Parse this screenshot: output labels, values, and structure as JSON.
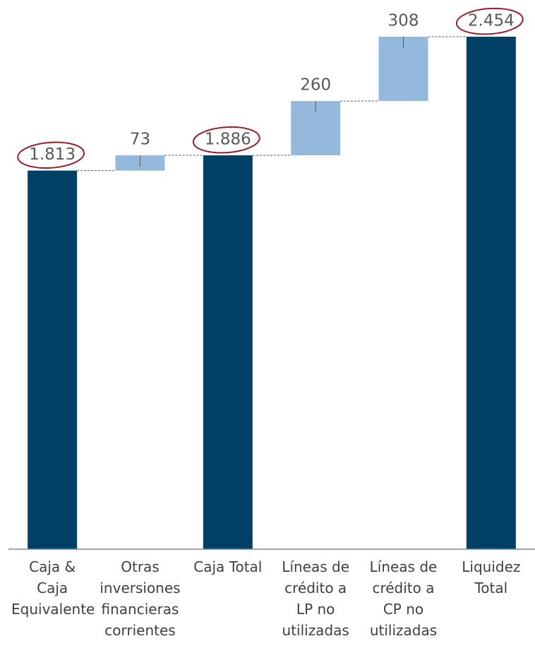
{
  "chart_data": {
    "type": "waterfall",
    "categories": [
      "Caja & Caja Equivalente",
      "Otras inversiones financieras corrientes",
      "Caja Total",
      "Líneas de crédito a LP no utilizadas",
      "Líneas de crédito a CP no utilizadas",
      "Liquidez Total"
    ],
    "values": [
      1813,
      73,
      1886,
      260,
      308,
      2454
    ],
    "value_labels": [
      "1.813",
      "73",
      "1.886",
      "260",
      "308",
      "2.454"
    ],
    "measure": [
      "total",
      "relative",
      "total",
      "relative",
      "relative",
      "total"
    ],
    "total_color": "#003f66",
    "relative_color": "#95b8dd"
  }
}
